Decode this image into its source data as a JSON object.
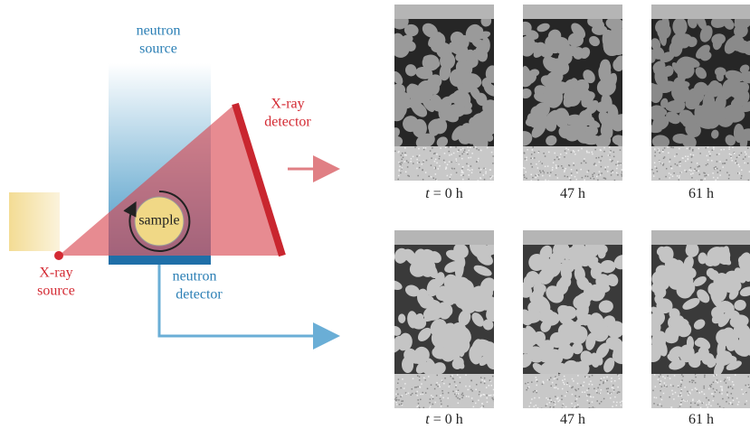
{
  "diagram": {
    "neutron_source": [
      "neutron",
      "source"
    ],
    "xray_detector": [
      "X-ray",
      "detector"
    ],
    "xray_source": [
      "X-ray",
      "source"
    ],
    "neutron_detector": [
      "neutron",
      "detector"
    ],
    "sample": "sample"
  },
  "panels": {
    "rows": [
      {
        "labels": [
          {
            "variable": "t",
            "text": "= 0 h"
          },
          {
            "text": "47 h"
          },
          {
            "text": "61 h"
          }
        ]
      },
      {
        "labels": [
          {
            "variable": "t",
            "text": "= 0 h"
          },
          {
            "text": "47 h"
          },
          {
            "text": "61 h"
          }
        ]
      }
    ]
  }
}
